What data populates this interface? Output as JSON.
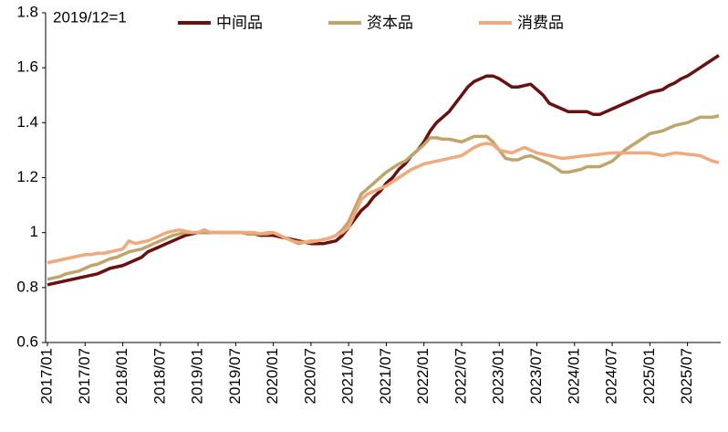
{
  "chart_data": {
    "type": "line",
    "annotation": "2019/12=1",
    "categories": [
      "2017/01",
      null,
      null,
      null,
      null,
      null,
      "2017/07",
      null,
      null,
      null,
      null,
      null,
      "2018/01",
      null,
      null,
      null,
      null,
      null,
      "2018/07",
      null,
      null,
      null,
      null,
      null,
      "2019/01",
      null,
      null,
      null,
      null,
      null,
      "2019/07",
      null,
      null,
      null,
      null,
      null,
      "2020/01",
      null,
      null,
      null,
      null,
      null,
      "2020/07",
      null,
      null,
      null,
      null,
      null,
      "2021/01",
      null,
      null,
      null,
      null,
      null,
      "2021/07",
      null,
      null,
      null,
      null,
      null,
      "2022/01",
      null,
      null,
      null,
      null,
      null,
      "2022/07",
      null,
      null,
      null,
      null,
      null,
      "2023/01",
      null,
      null,
      null,
      null,
      null,
      "2023/07",
      null,
      null,
      null,
      null,
      null,
      "2024/01",
      null,
      null,
      null,
      null,
      null,
      "2024/07",
      null,
      null,
      null,
      null,
      null,
      "2025/01",
      null,
      null,
      null,
      null,
      null,
      "2025/07",
      null,
      null,
      null,
      null,
      null
    ],
    "series": [
      {
        "name": "中间品",
        "color": "#6b0f0f",
        "values": [
          0.81,
          0.815,
          0.82,
          0.825,
          0.83,
          0.835,
          0.84,
          0.845,
          0.85,
          0.86,
          0.87,
          0.875,
          0.88,
          0.89,
          0.9,
          0.91,
          0.93,
          0.94,
          0.95,
          0.96,
          0.97,
          0.98,
          0.99,
          0.995,
          1.0,
          1.0,
          1.0,
          1.0,
          1.0,
          1.0,
          1.0,
          1.0,
          0.995,
          0.995,
          0.99,
          0.99,
          0.99,
          0.985,
          0.98,
          0.975,
          0.97,
          0.965,
          0.96,
          0.96,
          0.96,
          0.965,
          0.97,
          0.99,
          1.02,
          1.05,
          1.08,
          1.1,
          1.13,
          1.15,
          1.18,
          1.2,
          1.23,
          1.25,
          1.28,
          1.3,
          1.33,
          1.37,
          1.4,
          1.42,
          1.44,
          1.47,
          1.5,
          1.53,
          1.55,
          1.56,
          1.57,
          1.57,
          1.56,
          1.545,
          1.53,
          1.53,
          1.535,
          1.54,
          1.52,
          1.5,
          1.47,
          1.46,
          1.45,
          1.44,
          1.44,
          1.44,
          1.44,
          1.43,
          1.43,
          1.44,
          1.45,
          1.46,
          1.47,
          1.48,
          1.49,
          1.5,
          1.51,
          1.515,
          1.52,
          1.535,
          1.545,
          1.56,
          1.57,
          1.585,
          1.6,
          1.615,
          1.63,
          1.645
        ]
      },
      {
        "name": "资本品",
        "color": "#bfa56a",
        "values": [
          0.83,
          0.835,
          0.84,
          0.85,
          0.855,
          0.86,
          0.87,
          0.88,
          0.885,
          0.895,
          0.905,
          0.91,
          0.92,
          0.93,
          0.935,
          0.94,
          0.95,
          0.96,
          0.97,
          0.98,
          0.99,
          0.995,
          1.0,
          1.0,
          1.0,
          1.0,
          1.0,
          1.0,
          1.0,
          1.0,
          1.0,
          1.0,
          0.995,
          0.995,
          0.995,
          0.995,
          1.0,
          0.99,
          0.98,
          0.97,
          0.96,
          0.965,
          0.965,
          0.97,
          0.975,
          0.98,
          0.99,
          1.01,
          1.04,
          1.09,
          1.14,
          1.16,
          1.18,
          1.2,
          1.22,
          1.235,
          1.25,
          1.26,
          1.28,
          1.3,
          1.32,
          1.345,
          1.345,
          1.34,
          1.34,
          1.335,
          1.33,
          1.34,
          1.35,
          1.35,
          1.35,
          1.33,
          1.3,
          1.27,
          1.265,
          1.265,
          1.275,
          1.28,
          1.27,
          1.26,
          1.25,
          1.235,
          1.22,
          1.22,
          1.225,
          1.23,
          1.24,
          1.24,
          1.24,
          1.25,
          1.26,
          1.28,
          1.3,
          1.315,
          1.33,
          1.345,
          1.36,
          1.365,
          1.37,
          1.38,
          1.39,
          1.395,
          1.4,
          1.41,
          1.42,
          1.42,
          1.42,
          1.425
        ]
      },
      {
        "name": "消费品",
        "color": "#f0a97a",
        "values": [
          0.89,
          0.895,
          0.9,
          0.905,
          0.91,
          0.915,
          0.92,
          0.92,
          0.925,
          0.925,
          0.93,
          0.935,
          0.94,
          0.97,
          0.96,
          0.965,
          0.97,
          0.98,
          0.99,
          1.0,
          1.005,
          1.01,
          1.005,
          1.0,
          1.0,
          1.01,
          1.0,
          1.0,
          1.0,
          1.0,
          1.0,
          1.0,
          1.0,
          1.0,
          0.995,
          1.0,
          1.0,
          0.99,
          0.98,
          0.97,
          0.965,
          0.965,
          0.97,
          0.97,
          0.975,
          0.98,
          0.99,
          1.0,
          1.02,
          1.07,
          1.12,
          1.14,
          1.15,
          1.16,
          1.17,
          1.185,
          1.2,
          1.215,
          1.23,
          1.24,
          1.25,
          1.255,
          1.26,
          1.265,
          1.27,
          1.275,
          1.28,
          1.295,
          1.31,
          1.32,
          1.325,
          1.32,
          1.3,
          1.295,
          1.29,
          1.3,
          1.31,
          1.3,
          1.29,
          1.285,
          1.28,
          1.275,
          1.27,
          1.272,
          1.275,
          1.278,
          1.28,
          1.283,
          1.285,
          1.288,
          1.29,
          1.29,
          1.29,
          1.29,
          1.29,
          1.29,
          1.29,
          1.285,
          1.28,
          1.285,
          1.29,
          1.288,
          1.285,
          1.283,
          1.28,
          1.27,
          1.26,
          1.255
        ]
      }
    ],
    "ylim": [
      0.6,
      1.8
    ],
    "yticks": [
      0.6,
      0.8,
      1,
      1.2,
      1.4,
      1.6,
      1.8
    ],
    "grid": false
  }
}
